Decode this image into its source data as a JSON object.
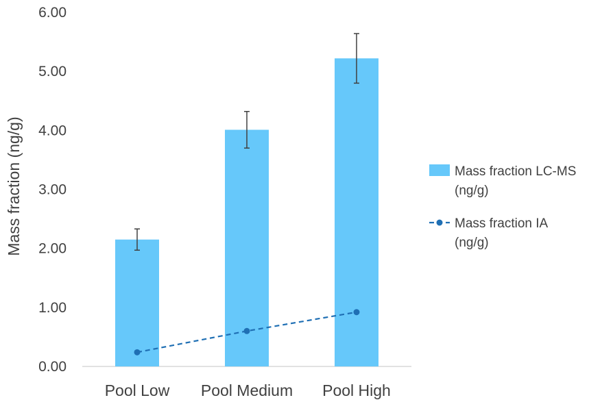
{
  "chart_data": {
    "type": "bar",
    "categories": [
      "Pool Low",
      "Pool Medium",
      "Pool High"
    ],
    "ylabel": "Mass fraction (ng/g)",
    "ylim": [
      0,
      6
    ],
    "yticks": [
      "0.00",
      "1.00",
      "2.00",
      "3.00",
      "4.00",
      "5.00",
      "6.00"
    ],
    "legend_position": "right",
    "grid": false,
    "series": [
      {
        "name_lines": [
          "Mass fraction LC-MS",
          "(ng/g)"
        ],
        "type": "bar",
        "color": "#66c8fa",
        "values": [
          2.15,
          4.01,
          5.22
        ],
        "error": [
          0.18,
          0.31,
          0.42
        ]
      },
      {
        "name_lines": [
          "Mass fraction IA",
          "(ng/g)"
        ],
        "type": "line",
        "style": "dashed",
        "marker": "circle",
        "color": "#1f6fb4",
        "values": [
          0.24,
          0.6,
          0.92
        ]
      }
    ]
  }
}
